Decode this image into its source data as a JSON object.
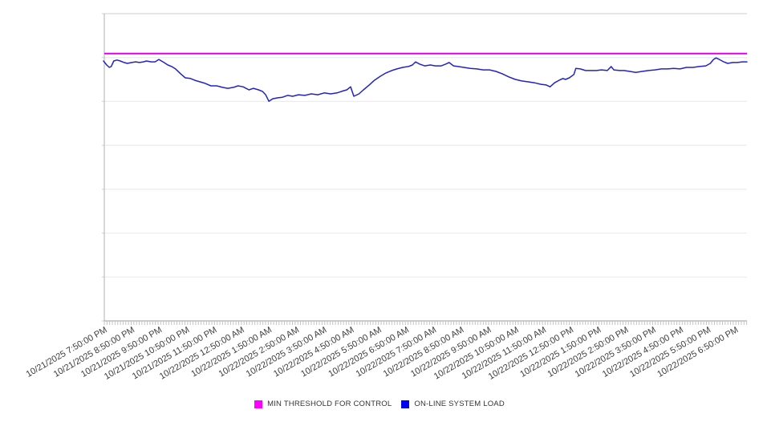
{
  "chart_data": {
    "type": "line",
    "title": "",
    "xlabel": "",
    "ylabel": "",
    "y_axis": {
      "labels_visible": false,
      "ylim": [
        0,
        100
      ],
      "units": "percent-of-plot-height (axis unlabeled in source)",
      "gridline_intervals": 7,
      "grid": true
    },
    "x_axis": {
      "categories": [
        "10/21/2025 7:50:00 PM",
        "10/21/2025 8:50:00 PM",
        "10/21/2025 9:50:00 PM",
        "10/21/2025 10:50:00 PM",
        "10/21/2025 11:50:00 PM",
        "10/22/2025 12:50:00 AM",
        "10/22/2025 1:50:00 AM",
        "10/22/2025 2:50:00 AM",
        "10/22/2025 3:50:00 AM",
        "10/22/2025 4:50:00 AM",
        "10/22/2025 5:50:00 AM",
        "10/22/2025 6:50:00 AM",
        "10/22/2025 7:50:00 AM",
        "10/22/2025 8:50:00 AM",
        "10/22/2025 9:50:00 AM",
        "10/22/2025 10:50:00 AM",
        "10/22/2025 11:50:00 AM",
        "10/22/2025 12:50:00 PM",
        "10/22/2025 1:50:00 PM",
        "10/22/2025 2:50:00 PM",
        "10/22/2025 3:50:00 PM",
        "10/22/2025 4:50:00 PM",
        "10/22/2025 5:50:00 PM",
        "10/22/2025 6:50:00 PM"
      ],
      "label_rotation_deg": -30,
      "minor_ticks": "dense minute-interval tick comb along baseline"
    },
    "legend_position": "bottom",
    "series": [
      {
        "name": "MIN THRESHOLD FOR CONTROL",
        "type": "constant-threshold-line",
        "color": "#dd00dd",
        "value": 87
      },
      {
        "name": "ON-LINE SYSTEM LOAD",
        "type": "line",
        "color": "#2222cc",
        "points": [
          [
            0,
            84.6
          ],
          [
            0.005,
            83.3
          ],
          [
            0.009,
            82.5
          ],
          [
            0.012,
            82.8
          ],
          [
            0.016,
            84.6
          ],
          [
            0.021,
            84.9
          ],
          [
            0.026,
            84.6
          ],
          [
            0.032,
            84.1
          ],
          [
            0.037,
            83.8
          ],
          [
            0.044,
            84.1
          ],
          [
            0.05,
            84.3
          ],
          [
            0.056,
            84.1
          ],
          [
            0.062,
            84.3
          ],
          [
            0.067,
            84.6
          ],
          [
            0.074,
            84.3
          ],
          [
            0.08,
            84.3
          ],
          [
            0.086,
            85.1
          ],
          [
            0.09,
            84.6
          ],
          [
            0.094,
            84.1
          ],
          [
            0.1,
            83.3
          ],
          [
            0.106,
            82.8
          ],
          [
            0.112,
            82
          ],
          [
            0.12,
            80.4
          ],
          [
            0.127,
            79.1
          ],
          [
            0.135,
            78.9
          ],
          [
            0.142,
            78.3
          ],
          [
            0.15,
            77.8
          ],
          [
            0.158,
            77.3
          ],
          [
            0.167,
            76.5
          ],
          [
            0.176,
            76.5
          ],
          [
            0.185,
            76
          ],
          [
            0.193,
            75.7
          ],
          [
            0.202,
            76
          ],
          [
            0.209,
            76.5
          ],
          [
            0.217,
            76.2
          ],
          [
            0.226,
            75.2
          ],
          [
            0.233,
            75.7
          ],
          [
            0.241,
            75.2
          ],
          [
            0.247,
            74.7
          ],
          [
            0.252,
            73.6
          ],
          [
            0.257,
            71.5
          ],
          [
            0.263,
            72.3
          ],
          [
            0.271,
            72.6
          ],
          [
            0.278,
            72.8
          ],
          [
            0.286,
            73.4
          ],
          [
            0.294,
            73.1
          ],
          [
            0.303,
            73.6
          ],
          [
            0.313,
            73.4
          ],
          [
            0.323,
            73.9
          ],
          [
            0.333,
            73.6
          ],
          [
            0.343,
            74.2
          ],
          [
            0.353,
            73.9
          ],
          [
            0.363,
            74.2
          ],
          [
            0.37,
            74.7
          ],
          [
            0.378,
            75.2
          ],
          [
            0.384,
            76.2
          ],
          [
            0.389,
            73.1
          ],
          [
            0.397,
            73.9
          ],
          [
            0.404,
            75.2
          ],
          [
            0.413,
            76.8
          ],
          [
            0.421,
            78.3
          ],
          [
            0.43,
            79.6
          ],
          [
            0.439,
            80.7
          ],
          [
            0.448,
            81.5
          ],
          [
            0.456,
            82
          ],
          [
            0.465,
            82.5
          ],
          [
            0.474,
            82.8
          ],
          [
            0.48,
            83.3
          ],
          [
            0.485,
            84.3
          ],
          [
            0.491,
            83.6
          ],
          [
            0.499,
            83
          ],
          [
            0.508,
            83.3
          ],
          [
            0.516,
            83
          ],
          [
            0.525,
            83
          ],
          [
            0.532,
            83.6
          ],
          [
            0.537,
            84.1
          ],
          [
            0.544,
            83
          ],
          [
            0.551,
            82.8
          ],
          [
            0.56,
            82.5
          ],
          [
            0.57,
            82.2
          ],
          [
            0.58,
            82
          ],
          [
            0.59,
            81.7
          ],
          [
            0.6,
            81.7
          ],
          [
            0.61,
            81.2
          ],
          [
            0.62,
            80.4
          ],
          [
            0.63,
            79.4
          ],
          [
            0.64,
            78.6
          ],
          [
            0.65,
            78.1
          ],
          [
            0.66,
            77.8
          ],
          [
            0.67,
            77.5
          ],
          [
            0.68,
            77
          ],
          [
            0.688,
            76.8
          ],
          [
            0.694,
            76.2
          ],
          [
            0.701,
            77.5
          ],
          [
            0.708,
            78.3
          ],
          [
            0.714,
            78.9
          ],
          [
            0.718,
            78.6
          ],
          [
            0.724,
            79.1
          ],
          [
            0.731,
            80.2
          ],
          [
            0.734,
            82.2
          ],
          [
            0.741,
            82
          ],
          [
            0.749,
            81.5
          ],
          [
            0.758,
            81.5
          ],
          [
            0.766,
            81.5
          ],
          [
            0.774,
            81.7
          ],
          [
            0.783,
            81.5
          ],
          [
            0.789,
            82.8
          ],
          [
            0.793,
            81.7
          ],
          [
            0.802,
            81.5
          ],
          [
            0.809,
            81.5
          ],
          [
            0.818,
            81.2
          ],
          [
            0.827,
            80.9
          ],
          [
            0.837,
            81.2
          ],
          [
            0.847,
            81.5
          ],
          [
            0.857,
            81.7
          ],
          [
            0.867,
            82
          ],
          [
            0.877,
            82
          ],
          [
            0.886,
            82.2
          ],
          [
            0.896,
            82
          ],
          [
            0.906,
            82.5
          ],
          [
            0.916,
            82.5
          ],
          [
            0.926,
            82.8
          ],
          [
            0.936,
            83
          ],
          [
            0.943,
            83.8
          ],
          [
            0.948,
            85.1
          ],
          [
            0.952,
            85.6
          ],
          [
            0.957,
            85.1
          ],
          [
            0.964,
            84.3
          ],
          [
            0.97,
            83.8
          ],
          [
            0.978,
            84.1
          ],
          [
            0.985,
            84.1
          ],
          [
            0.993,
            84.3
          ],
          [
            1,
            84.3
          ]
        ]
      }
    ]
  },
  "legend": {
    "items": [
      {
        "label": "MIN THRESHOLD FOR CONTROL",
        "swatch_color": "#ff00ff"
      },
      {
        "label": "ON-LINE SYSTEM LOAD",
        "swatch_color": "#0000ee"
      }
    ]
  },
  "colors": {
    "threshold_line": "#dd00dd",
    "load_line": "#2222cc",
    "gridline": "#e8e8e8",
    "axis": "#999999",
    "label_text": "#3c3c3c"
  }
}
